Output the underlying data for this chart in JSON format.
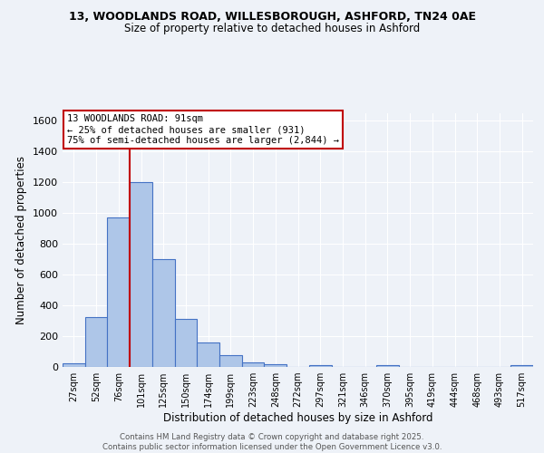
{
  "title_line1": "13, WOODLANDS ROAD, WILLESBOROUGH, ASHFORD, TN24 0AE",
  "title_line2": "Size of property relative to detached houses in Ashford",
  "xlabel": "Distribution of detached houses by size in Ashford",
  "ylabel": "Number of detached properties",
  "categories": [
    "27sqm",
    "52sqm",
    "76sqm",
    "101sqm",
    "125sqm",
    "150sqm",
    "174sqm",
    "199sqm",
    "223sqm",
    "248sqm",
    "272sqm",
    "297sqm",
    "321sqm",
    "346sqm",
    "370sqm",
    "395sqm",
    "419sqm",
    "444sqm",
    "468sqm",
    "493sqm",
    "517sqm"
  ],
  "values": [
    25,
    325,
    975,
    1205,
    700,
    310,
    160,
    75,
    30,
    15,
    0,
    10,
    0,
    0,
    10,
    0,
    0,
    0,
    0,
    0,
    10
  ],
  "bar_color": "#aec6e8",
  "bar_edge_color": "#4472c4",
  "vline_x": 2.5,
  "vline_color": "#c00000",
  "annotation_text": "13 WOODLANDS ROAD: 91sqm\n← 25% of detached houses are smaller (931)\n75% of semi-detached houses are larger (2,844) →",
  "annotation_box_color": "#ffffff",
  "annotation_box_edge": "#c00000",
  "ylim": [
    0,
    1650
  ],
  "yticks": [
    0,
    200,
    400,
    600,
    800,
    1000,
    1200,
    1400,
    1600
  ],
  "footer_line1": "Contains HM Land Registry data © Crown copyright and database right 2025.",
  "footer_line2": "Contains public sector information licensed under the Open Government Licence v3.0.",
  "bg_color": "#eef2f8",
  "grid_color": "#ffffff"
}
